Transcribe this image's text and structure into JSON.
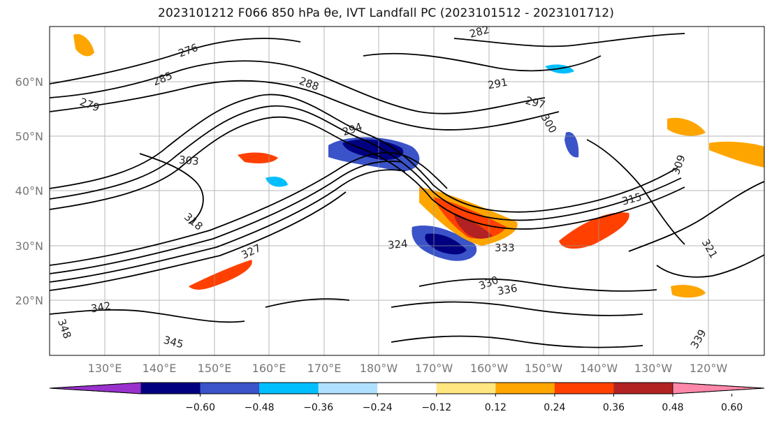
{
  "title": "2023101212 F066 850 hPa θe, IVT Landfall PC (2023101512 - 2023101712)",
  "latitude_labels": [
    "60°N",
    "50°N",
    "40°N",
    "30°N",
    "20°N"
  ],
  "longitude_labels": [
    "130°E",
    "140°E",
    "150°E",
    "160°E",
    "170°E",
    "180°W",
    "170°W",
    "160°W",
    "150°W",
    "140°W",
    "130°W",
    "120°W"
  ],
  "contour_labels": [
    "276",
    "279",
    "282",
    "285",
    "288",
    "291",
    "294",
    "297",
    "300",
    "303",
    "309",
    "315",
    "318",
    "321",
    "324",
    "327",
    "330",
    "333",
    "336",
    "339",
    "342",
    "345",
    "348"
  ],
  "colorbar": {
    "ticks": [
      "−0.60",
      "−0.48",
      "−0.36",
      "−0.24",
      "−0.12",
      "0.12",
      "0.24",
      "0.36",
      "0.48",
      "0.60"
    ],
    "colors": [
      "#9932cc",
      "#000080",
      "#3a53c8",
      "#00bfff",
      "#b0e0ff",
      "#ffffff",
      "#ffe680",
      "#ffa500",
      "#ff4000",
      "#b22222",
      "#ff88aa"
    ]
  },
  "colors": {
    "grid": "#999999",
    "contour": "#000000",
    "axis_label": "#777777"
  }
}
